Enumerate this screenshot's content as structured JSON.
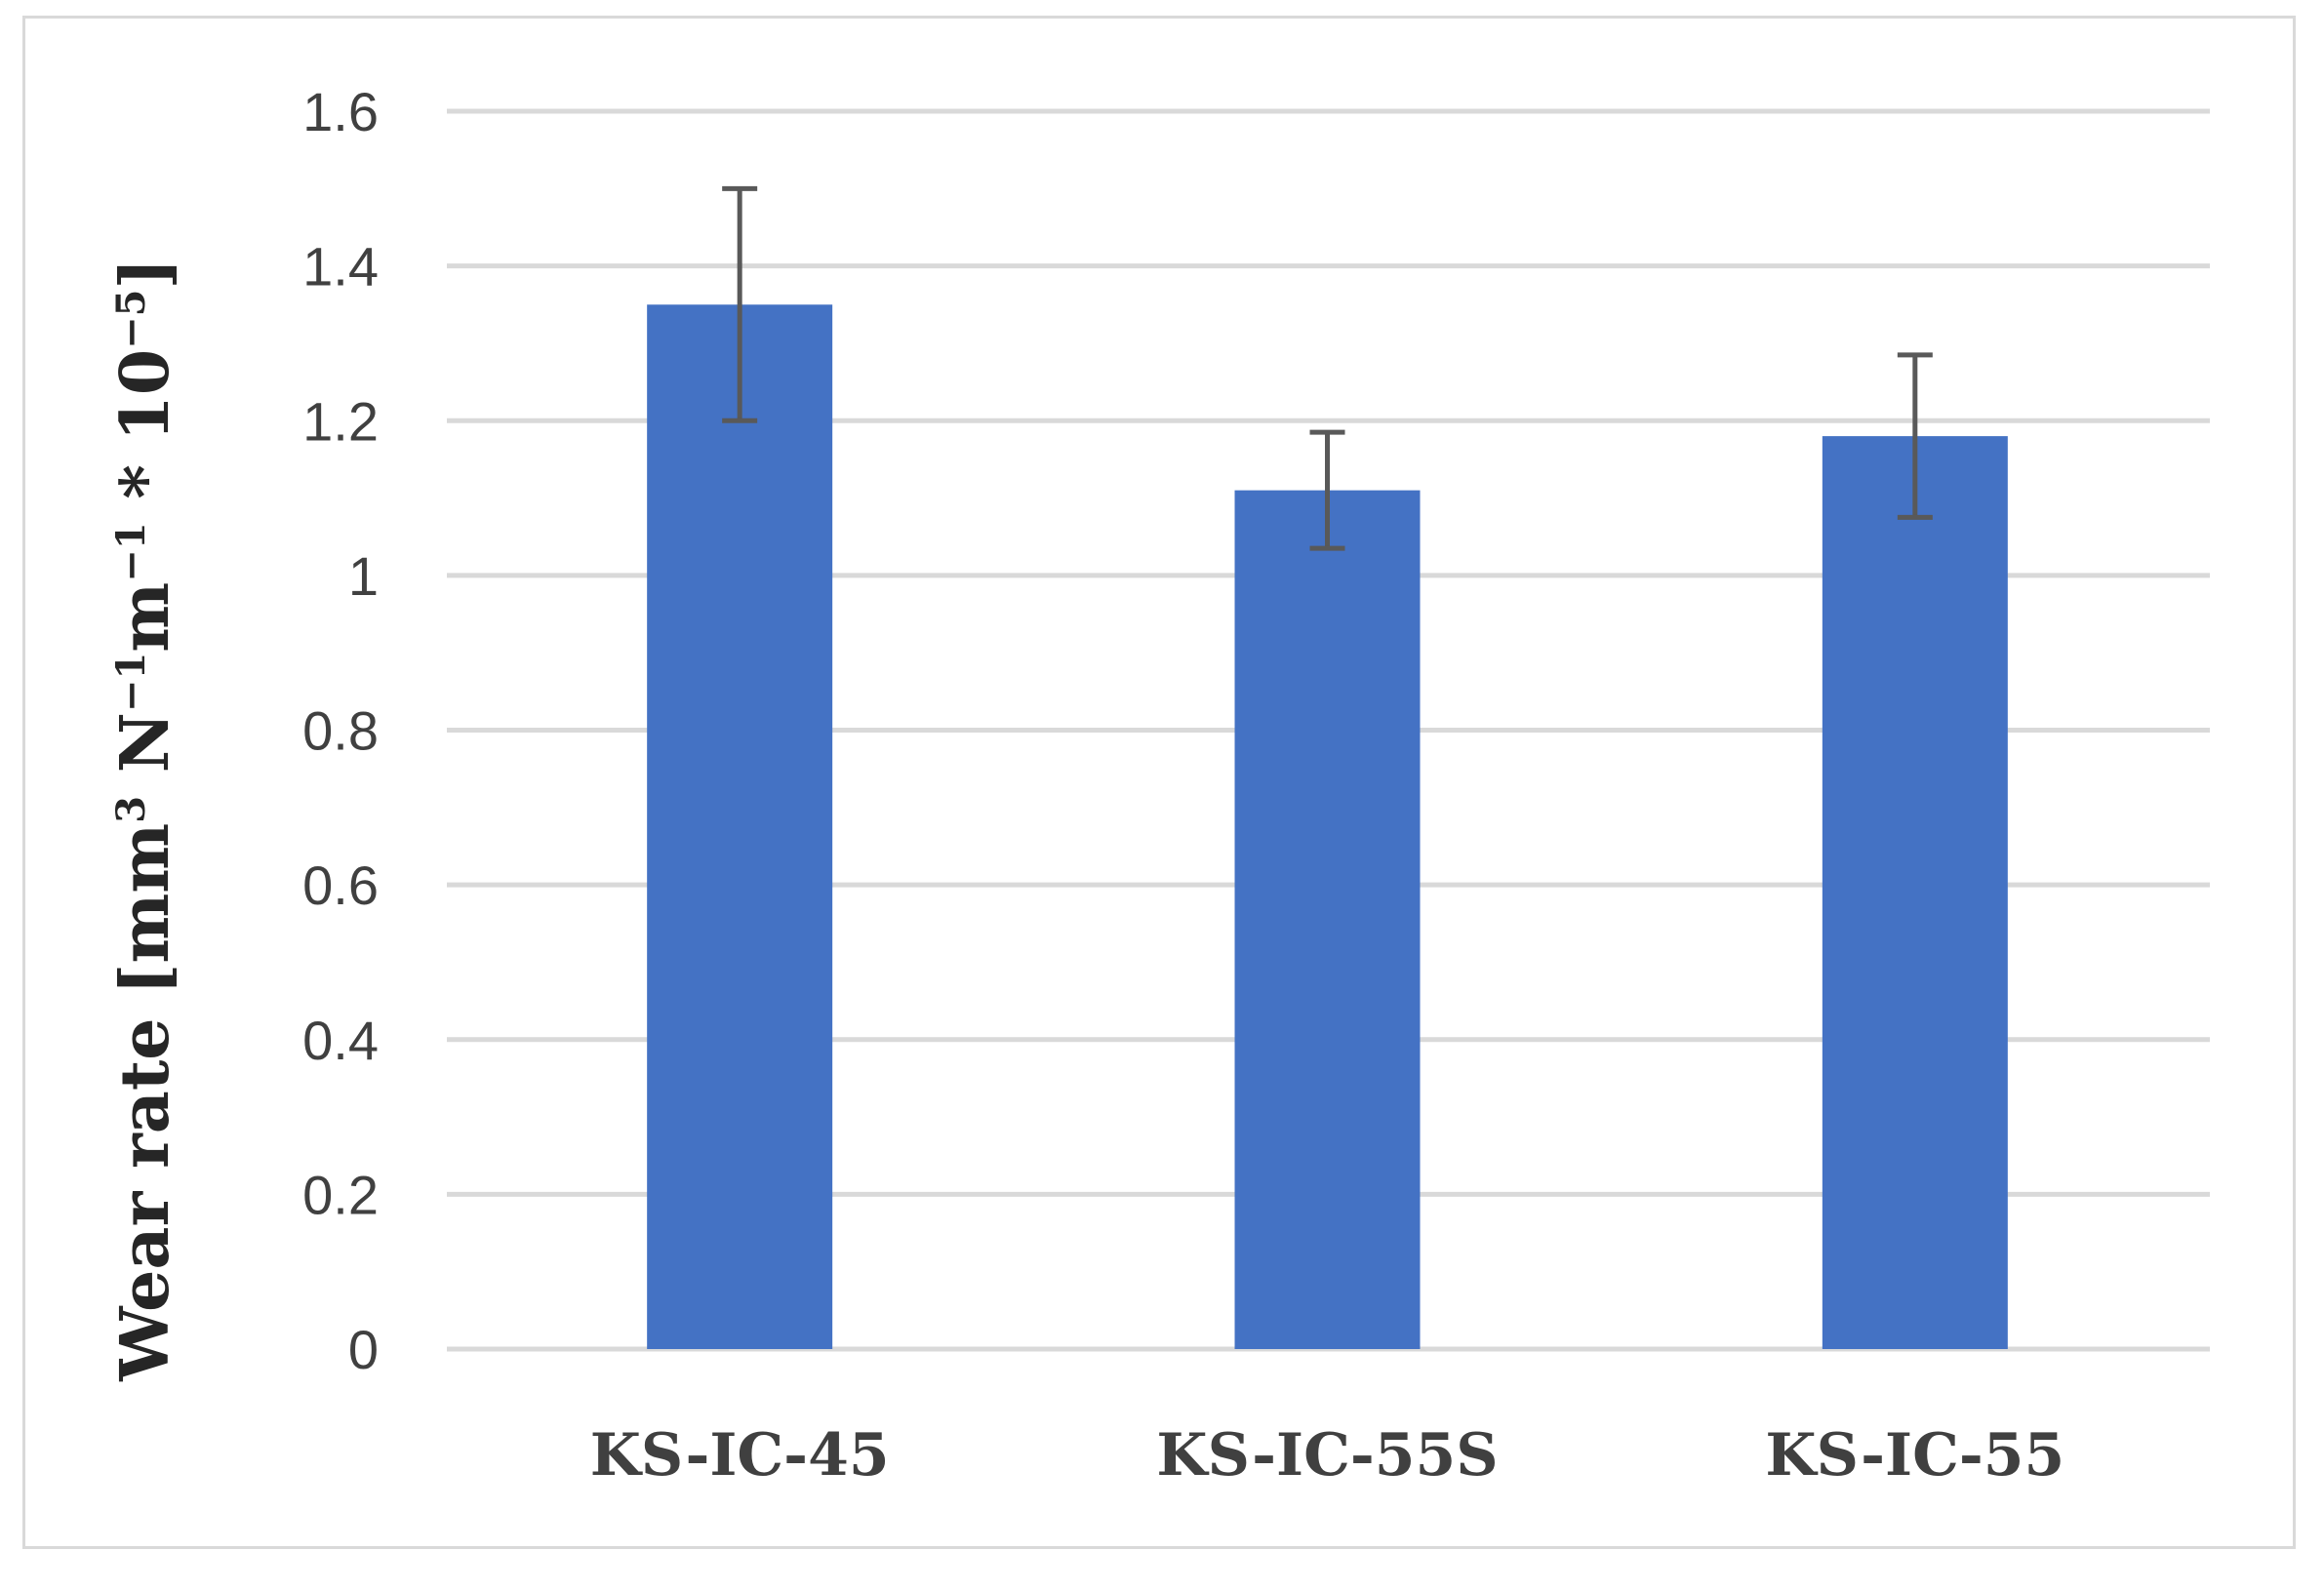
{
  "chart_data": {
    "type": "bar",
    "categories": [
      "KS-IC-45",
      "KS-IC-55S",
      "KS-IC-55"
    ],
    "series": [
      {
        "values": [
          1.35,
          1.11,
          1.18
        ],
        "error": [
          0.15,
          0.075,
          0.105
        ],
        "color": "#4472C4"
      }
    ],
    "yticks": [
      "0",
      "0.2",
      "0.4",
      "0.6",
      "0.8",
      "1",
      "1.2",
      "1.4",
      "1.6"
    ],
    "ylim": [
      0,
      1.6
    ],
    "ylabel": {
      "pre": "Wear rate [mm",
      "sup1": "3",
      "mid1": " N",
      "sup2": "−1",
      "mid2": "m",
      "sup3": "−1",
      "mid3": " *  10",
      "sup4": "−5",
      "post": "]"
    },
    "xlabel": "",
    "title": "",
    "grid": true,
    "gridColor": "#d9d9d9",
    "errorBarColor": "#595959"
  }
}
